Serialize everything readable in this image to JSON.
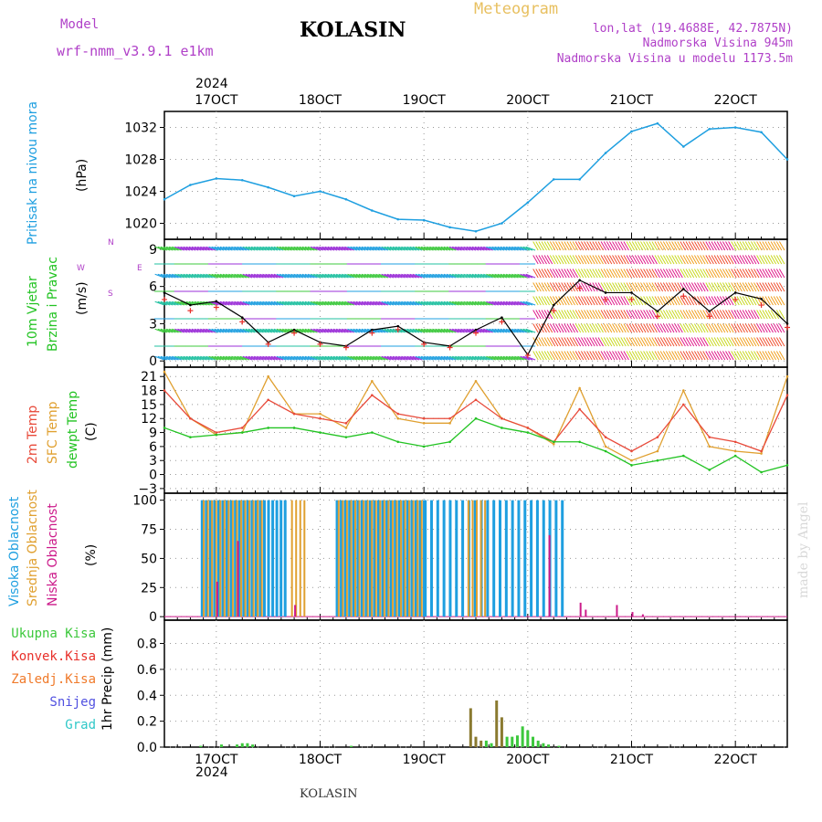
{
  "header": {
    "model_label": "Model",
    "model_name": "wrf-nmm_v3.9.1 e1km",
    "title": "KOLASIN",
    "product": "Meteogram",
    "coords": "lon,lat (19.4688E, 42.7875N)",
    "elevation": "Nadmorska Visina 945m",
    "model_elevation": "Nadmorska Visina u modelu 1173.5m",
    "year_top": "2024",
    "year_bottom": "2024",
    "footer": "KOLASIN",
    "credit": "made by Angel"
  },
  "colors": {
    "pressure": "#1e9fe0",
    "wind_speed": "#000000",
    "wind_gust_marker": "#e8302a",
    "temp_2m": "#e84a3a",
    "temp_sfc": "#e0a030",
    "temp_dew": "#22c322",
    "cloud_high": "#1e9fe0",
    "cloud_mid": "#e0a030",
    "cloud_low": "#cc1a8a",
    "precip_total": "#3cc83c",
    "precip_conv": "#e8302a",
    "precip_frozen": "#f07a2a",
    "snow": "#5050e0",
    "hail": "#30c8c8"
  },
  "chart_data": [
    {
      "type": "line",
      "panel": "pressure",
      "ylabel": [
        "Pritisak na nivou mora",
        "(hPa)"
      ],
      "yticks": [
        1020,
        1024,
        1028,
        1032
      ],
      "ylim": [
        1018,
        1034
      ],
      "x_day_labels": [
        "17OCT",
        "18OCT",
        "19OCT",
        "20OCT",
        "21OCT",
        "22OCT"
      ],
      "x": [
        16.5,
        16.75,
        17,
        17.25,
        17.5,
        17.75,
        18,
        18.25,
        18.5,
        18.75,
        19,
        19.25,
        19.5,
        19.75,
        20,
        20.25,
        20.5,
        20.75,
        21,
        21.25,
        21.5,
        21.75,
        22,
        22.25,
        22.5
      ],
      "values": [
        1023.0,
        1024.8,
        1025.6,
        1025.4,
        1024.5,
        1023.4,
        1024.0,
        1023.0,
        1021.6,
        1020.5,
        1020.4,
        1019.5,
        1019.0,
        1020.0,
        1022.6,
        1025.5,
        1025.5,
        1028.8,
        1031.5,
        1032.5,
        1029.6,
        1031.8,
        1032.0,
        1031.4,
        1028.0
      ]
    },
    {
      "type": "line",
      "panel": "wind",
      "ylabel": [
        "10m Vjetar",
        "Brzina i Pravac",
        "(m/s)"
      ],
      "compass": [
        "N",
        "W",
        "E",
        "S"
      ],
      "yticks": [
        0,
        3,
        6,
        9
      ],
      "ylim": [
        -0.5,
        9.8
      ],
      "x": [
        16.5,
        16.75,
        17,
        17.25,
        17.5,
        17.75,
        18,
        18.25,
        18.5,
        18.75,
        19,
        19.25,
        19.5,
        19.75,
        20,
        20.25,
        20.5,
        20.75,
        21,
        21.25,
        21.5,
        21.75,
        22,
        22.25,
        22.5
      ],
      "series": [
        {
          "values": [
            5.5,
            4.5,
            4.8,
            3.5,
            1.5,
            2.5,
            1.5,
            1.2,
            2.5,
            2.8,
            1.5,
            1.2,
            2.5,
            3.5,
            0.5,
            4.5,
            6.5,
            5.5,
            5.5,
            4.0,
            5.8,
            4.0,
            5.5,
            5.0,
            3.0
          ]
        }
      ]
    },
    {
      "type": "line",
      "panel": "temperature",
      "ylabel": [
        "2m Temp",
        "SFC Temp",
        "dewpt Temp",
        "(C)"
      ],
      "yticks": [
        -3,
        0,
        3,
        6,
        9,
        12,
        15,
        18,
        21
      ],
      "ylim": [
        -4,
        23
      ],
      "x": [
        16.5,
        16.75,
        17,
        17.25,
        17.5,
        17.75,
        18,
        18.25,
        18.5,
        18.75,
        19,
        19.25,
        19.5,
        19.75,
        20,
        20.25,
        20.5,
        20.75,
        21,
        21.25,
        21.5,
        21.75,
        22,
        22.25,
        22.5
      ],
      "series": [
        {
          "name": "2m Temp",
          "values": [
            18,
            12,
            9,
            10,
            16,
            13,
            12,
            11,
            17,
            13,
            12,
            12,
            16,
            12,
            10,
            7,
            14,
            8,
            5,
            8,
            15,
            8,
            7,
            5,
            17
          ]
        },
        {
          "name": "SFC Temp",
          "values": [
            22,
            12,
            8.5,
            9,
            21,
            13,
            13,
            10,
            20,
            12,
            11,
            11,
            20,
            12,
            10,
            6.5,
            18.5,
            6,
            3,
            5,
            18,
            6,
            5,
            4.5,
            21
          ]
        },
        {
          "name": "dewpt Temp",
          "values": [
            10,
            8,
            8.5,
            9,
            10,
            10,
            9,
            8,
            9,
            7,
            6,
            7,
            12,
            10,
            9,
            7,
            7,
            5,
            2,
            3,
            4,
            1,
            4,
            0.5,
            2
          ]
        }
      ]
    },
    {
      "type": "bar",
      "panel": "cloud",
      "ylabel": [
        "Visoka Oblacnost",
        "Srednja Oblacnost",
        "Niska Oblacnost",
        "(%)"
      ],
      "yticks": [
        0,
        25,
        50,
        75,
        100
      ],
      "ylim": [
        -3,
        106
      ],
      "series": [
        {
          "name": "Visoka Oblacnost",
          "segments": [
            [
              16.85,
              17.65,
              100
            ],
            [
              18.15,
              19.0,
              100
            ],
            [
              19.0,
              20.35,
              100
            ]
          ]
        },
        {
          "name": "Srednja Oblacnost",
          "segments": [
            [
              16.85,
              17.45,
              100
            ],
            [
              17.7,
              17.85,
              100
            ],
            [
              18.15,
              19.0,
              100
            ],
            [
              19.4,
              19.6,
              100
            ]
          ]
        },
        {
          "name": "Niska Oblacnost",
          "points": [
            [
              17.0,
              30
            ],
            [
              17.2,
              65
            ],
            [
              17.75,
              10
            ],
            [
              20.2,
              70
            ],
            [
              20.5,
              12
            ],
            [
              20.55,
              6
            ],
            [
              20.85,
              10
            ],
            [
              21.0,
              4
            ],
            [
              21.1,
              2
            ]
          ]
        }
      ]
    },
    {
      "type": "bar",
      "panel": "precipitation",
      "ylabel": [
        "1hr Precip (mm)"
      ],
      "legend": [
        "Ukupna Kisa",
        "Konvek.Kisa",
        "Zaledj.Kisa",
        "Snijeg",
        "Grad"
      ],
      "yticks": [
        0,
        0.2,
        0.4,
        0.6,
        0.8
      ],
      "ylim": [
        0,
        0.98
      ],
      "series": [
        {
          "name": "Ukupna Kisa",
          "points": [
            [
              16.85,
              0.01
            ],
            [
              17.05,
              0.02
            ],
            [
              17.2,
              0.02
            ],
            [
              17.25,
              0.03
            ],
            [
              17.3,
              0.03
            ],
            [
              17.35,
              0.02
            ],
            [
              18.3,
              0.01
            ],
            [
              19.6,
              0.05
            ],
            [
              19.65,
              0.03
            ],
            [
              19.8,
              0.08
            ],
            [
              19.85,
              0.08
            ],
            [
              19.9,
              0.09
            ],
            [
              19.95,
              0.16
            ],
            [
              20.0,
              0.13
            ],
            [
              20.05,
              0.08
            ],
            [
              20.1,
              0.05
            ],
            [
              20.15,
              0.03
            ],
            [
              20.2,
              0.02
            ],
            [
              20.3,
              0.01
            ]
          ]
        },
        {
          "name": "Konvek.Kisa",
          "points": [
            [
              19.45,
              0.3
            ],
            [
              19.5,
              0.08
            ],
            [
              19.55,
              0.05
            ],
            [
              19.7,
              0.36
            ],
            [
              19.75,
              0.23
            ]
          ]
        }
      ]
    }
  ]
}
